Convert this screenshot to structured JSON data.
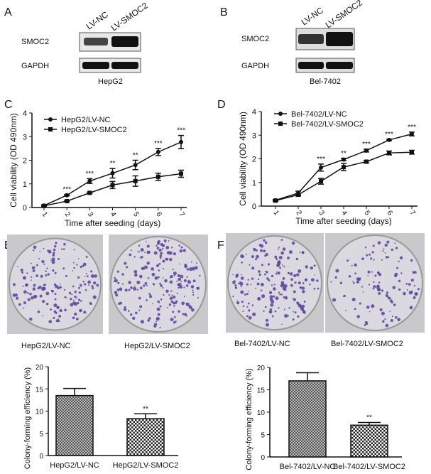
{
  "panels": {
    "A": {
      "label": "A",
      "lanes": [
        "LV-NC",
        "LV-SMOC2"
      ],
      "rows": [
        "SMOC2",
        "GAPDH"
      ],
      "cell_line": "HepG2"
    },
    "B": {
      "label": "B",
      "lanes": [
        "LV-NC",
        "LV-SMOC2"
      ],
      "rows": [
        "SMOC2",
        "GAPDH"
      ],
      "cell_line": "Bel-7402"
    },
    "C": {
      "label": "C"
    },
    "D": {
      "label": "D"
    },
    "E": {
      "label": "E",
      "photo_labels": [
        "HepG2/LV-NC",
        "HepG2/LV-SMOC2"
      ]
    },
    "F": {
      "label": "F",
      "photo_labels": [
        "Bel-7402/LV-NC",
        "Bel-7402/LV-SMOC2"
      ]
    }
  },
  "colors": {
    "line": "#111111",
    "bar_fill": "#888888",
    "colony": "#5a3fa0",
    "dish": "#d9d9df"
  },
  "chart_data": [
    {
      "panel": "C",
      "type": "line",
      "xlabel": "Time after seeding (days)",
      "ylabel": "Cell viability (OD 490nm)",
      "x": [
        1,
        2,
        3,
        4,
        5,
        6,
        7
      ],
      "ylim": [
        0,
        4
      ],
      "yticks": [
        0,
        1,
        2,
        3,
        4
      ],
      "legend_position": "top-left",
      "series": [
        {
          "name": "HepG2/LV-NC",
          "marker": "circle",
          "values": [
            0.08,
            0.52,
            1.12,
            1.45,
            1.8,
            2.35,
            2.77
          ],
          "errors": [
            0.03,
            0.03,
            0.1,
            0.2,
            0.2,
            0.15,
            0.28
          ]
        },
        {
          "name": "HepG2/LV-SMOC2",
          "marker": "square",
          "values": [
            0.07,
            0.27,
            0.62,
            0.95,
            1.12,
            1.3,
            1.43
          ],
          "errors": [
            0.02,
            0.02,
            0.03,
            0.15,
            0.22,
            0.15,
            0.15
          ]
        }
      ],
      "significance": [
        "",
        "***",
        "***",
        "**",
        "**",
        "***",
        "***"
      ]
    },
    {
      "panel": "D",
      "type": "line",
      "xlabel": "Time after seeding (days)",
      "ylabel": "Cell viability (OD 490nm)",
      "x": [
        1,
        2,
        3,
        4,
        5,
        6,
        7
      ],
      "ylim": [
        0,
        4
      ],
      "yticks": [
        0,
        1,
        2,
        3,
        4
      ],
      "legend_position": "top-left",
      "series": [
        {
          "name": "Bel-7402/LV-NC",
          "marker": "circle",
          "values": [
            0.25,
            0.55,
            1.63,
            1.97,
            2.35,
            2.8,
            3.05
          ],
          "errors": [
            0.03,
            0.08,
            0.15,
            0.05,
            0.06,
            0.03,
            0.08
          ]
        },
        {
          "name": "Bel-7402/LV-SMOC2",
          "marker": "square",
          "values": [
            0.23,
            0.48,
            1.05,
            1.65,
            1.88,
            2.25,
            2.28
          ],
          "errors": [
            0.03,
            0.05,
            0.12,
            0.15,
            0.05,
            0.08,
            0.08
          ]
        }
      ],
      "significance": [
        "",
        "",
        "***",
        "**",
        "***",
        "***",
        "***"
      ]
    },
    {
      "panel": "E",
      "type": "bar",
      "ylabel": "Colony-forming efficiency (%)",
      "categories": [
        "HepG2/LV-NC",
        "HepG2/LV-SMOC2"
      ],
      "values": [
        13.5,
        8.3
      ],
      "errors": [
        1.6,
        1.1
      ],
      "ylim": [
        0,
        20
      ],
      "yticks": [
        0,
        5,
        10,
        15,
        20
      ],
      "significance": [
        "",
        "**"
      ]
    },
    {
      "panel": "F",
      "type": "bar",
      "ylabel": "Colony-forming efficiency (%)",
      "categories": [
        "Bel-7402/LV-NC",
        "Bel-7402/LV-SMOC2"
      ],
      "values": [
        17.0,
        7.1
      ],
      "errors": [
        1.8,
        0.6
      ],
      "ylim": [
        0,
        20
      ],
      "yticks": [
        0,
        5,
        10,
        15,
        20
      ],
      "significance": [
        "",
        "**"
      ]
    }
  ]
}
